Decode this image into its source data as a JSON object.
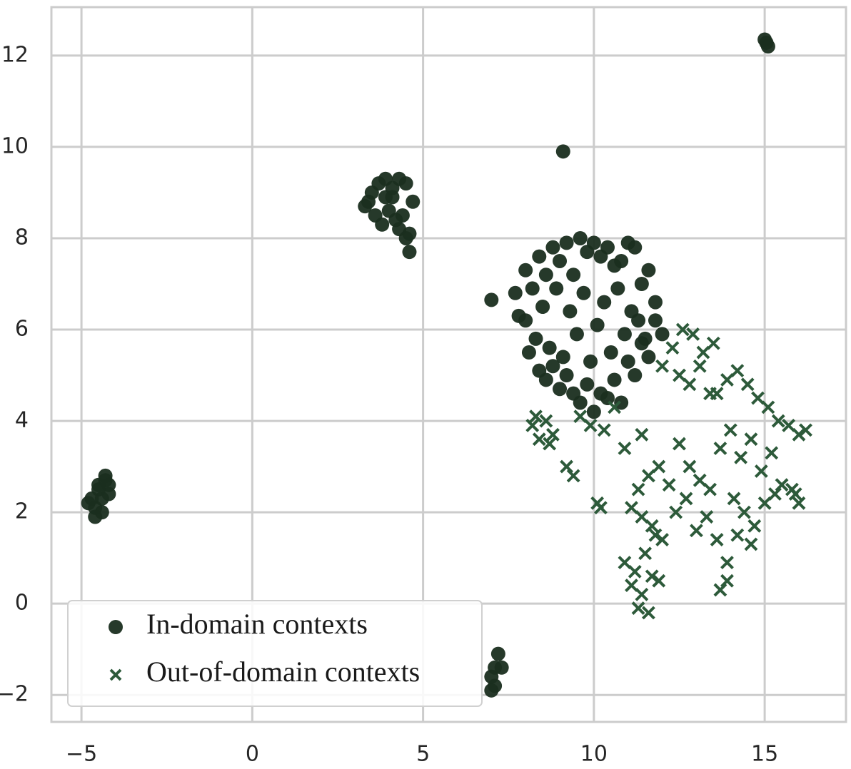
{
  "chart_data": {
    "type": "scatter",
    "xlim": [
      -5.88,
      17.38
    ],
    "ylim": [
      -2.59,
      13.06
    ],
    "xticks": [
      {
        "value": -5,
        "label": "−5"
      },
      0,
      5,
      10,
      15
    ],
    "yticks": [
      {
        "value": -2,
        "label": "−2"
      },
      0,
      2,
      4,
      6,
      8,
      10,
      12
    ],
    "grid": true,
    "legend": "lower left",
    "series": [
      {
        "name": "In-domain contexts",
        "color": "#1a2e1f",
        "marker": "circle",
        "x": [
          -4.7,
          -4.5,
          -4.3,
          -4.2,
          -4.6,
          -4.4,
          -4.8,
          -4.5,
          -4.3,
          -4.6,
          -4.4,
          -4.2,
          3.3,
          3.5,
          3.7,
          3.9,
          4.1,
          4.3,
          4.5,
          4.7,
          3.6,
          3.8,
          4.0,
          4.2,
          4.4,
          4.6,
          3.4,
          4.1,
          4.5,
          4.6,
          3.9,
          4.3,
          15.0,
          15.05,
          15.1,
          9.1,
          7.0,
          7.0,
          7.1,
          7.2,
          7.3,
          7.1,
          7.0,
          7.8,
          8.0,
          8.2,
          8.4,
          8.6,
          8.8,
          9.0,
          9.2,
          9.4,
          9.6,
          9.8,
          10.0,
          10.2,
          10.4,
          10.6,
          10.8,
          11.0,
          11.2,
          11.4,
          11.6,
          7.7,
          8.0,
          8.3,
          8.5,
          8.7,
          8.9,
          9.1,
          9.3,
          9.5,
          9.7,
          9.9,
          10.1,
          10.3,
          10.5,
          10.7,
          10.9,
          11.1,
          11.3,
          11.5,
          11.8,
          8.1,
          8.4,
          8.6,
          8.8,
          9.0,
          9.2,
          9.4,
          9.6,
          9.8,
          10.0,
          10.2,
          10.4,
          10.6,
          10.8,
          11.0,
          11.2,
          11.4,
          11.6,
          11.8,
          12.0
        ],
        "values": [
          2.3,
          2.5,
          2.7,
          2.4,
          2.1,
          2.0,
          2.2,
          2.6,
          2.8,
          1.9,
          2.3,
          2.6,
          8.7,
          9.0,
          9.2,
          8.9,
          9.1,
          9.3,
          9.2,
          8.8,
          8.5,
          8.3,
          8.6,
          8.4,
          8.5,
          8.1,
          8.8,
          8.9,
          8.0,
          7.7,
          9.3,
          8.2,
          12.35,
          12.28,
          12.2,
          9.9,
          6.65,
          -1.6,
          -1.4,
          -1.1,
          -1.4,
          -1.8,
          -1.9,
          6.3,
          7.3,
          6.9,
          7.6,
          7.2,
          7.8,
          7.5,
          7.9,
          7.2,
          8.0,
          7.7,
          7.9,
          7.6,
          7.8,
          7.4,
          7.5,
          7.9,
          7.8,
          7.0,
          7.3,
          6.8,
          6.2,
          5.8,
          6.5,
          5.6,
          6.9,
          5.4,
          6.4,
          5.9,
          6.8,
          5.3,
          6.1,
          6.6,
          5.5,
          6.9,
          5.9,
          6.4,
          6.2,
          5.8,
          6.6,
          5.5,
          5.1,
          4.9,
          5.2,
          4.7,
          5.0,
          4.6,
          4.4,
          4.8,
          4.2,
          4.6,
          4.5,
          4.9,
          4.4,
          5.3,
          5.0,
          5.7,
          5.4,
          6.2,
          5.9
        ]
      },
      {
        "name": "Out-of-domain contexts",
        "color": "#2d5a3a",
        "marker": "x",
        "x": [
          8.2,
          8.4,
          8.6,
          8.8,
          8.3,
          8.7,
          9.2,
          9.4,
          9.6,
          9.9,
          10.3,
          10.6,
          10.9,
          11.4,
          10.1,
          10.2,
          12.0,
          12.3,
          12.6,
          12.9,
          13.2,
          13.5,
          12.5,
          12.8,
          13.1,
          13.4,
          13.6,
          13.9,
          14.2,
          14.5,
          14.8,
          15.1,
          15.4,
          15.7,
          16.0,
          16.2,
          13.7,
          14.0,
          14.3,
          14.6,
          14.9,
          15.2,
          15.5,
          15.8,
          14.1,
          14.4,
          14.7,
          15.0,
          15.3,
          14.2,
          14.6,
          15.9,
          16.0,
          11.3,
          11.6,
          11.9,
          12.2,
          12.5,
          12.8,
          13.1,
          13.4,
          11.1,
          11.4,
          11.7,
          12.0,
          12.4,
          12.7,
          13.0,
          13.3,
          13.6,
          13.9,
          10.9,
          11.2,
          11.5,
          11.8,
          11.1,
          11.4,
          11.7,
          11.3,
          11.6,
          11.9,
          13.7,
          13.9
        ],
        "values": [
          3.9,
          3.6,
          4.0,
          3.7,
          4.1,
          3.5,
          3.0,
          2.8,
          4.1,
          3.9,
          3.8,
          4.3,
          3.4,
          3.7,
          2.2,
          2.1,
          5.2,
          5.6,
          6.0,
          5.9,
          5.5,
          5.7,
          5.0,
          4.8,
          5.2,
          4.6,
          4.6,
          4.9,
          5.1,
          4.8,
          4.5,
          4.3,
          4.0,
          3.9,
          3.7,
          3.8,
          3.4,
          3.8,
          3.2,
          3.6,
          2.9,
          3.3,
          2.6,
          2.5,
          2.3,
          2.0,
          1.7,
          2.2,
          2.4,
          1.5,
          1.3,
          2.4,
          2.2,
          2.5,
          2.8,
          3.0,
          2.6,
          3.5,
          3.0,
          2.7,
          2.5,
          2.1,
          1.9,
          1.7,
          1.4,
          2.0,
          2.3,
          1.6,
          1.9,
          1.4,
          0.9,
          0.9,
          0.7,
          1.1,
          1.5,
          0.4,
          0.2,
          0.6,
          -0.1,
          -0.2,
          0.5,
          0.3,
          0.5
        ]
      }
    ]
  }
}
